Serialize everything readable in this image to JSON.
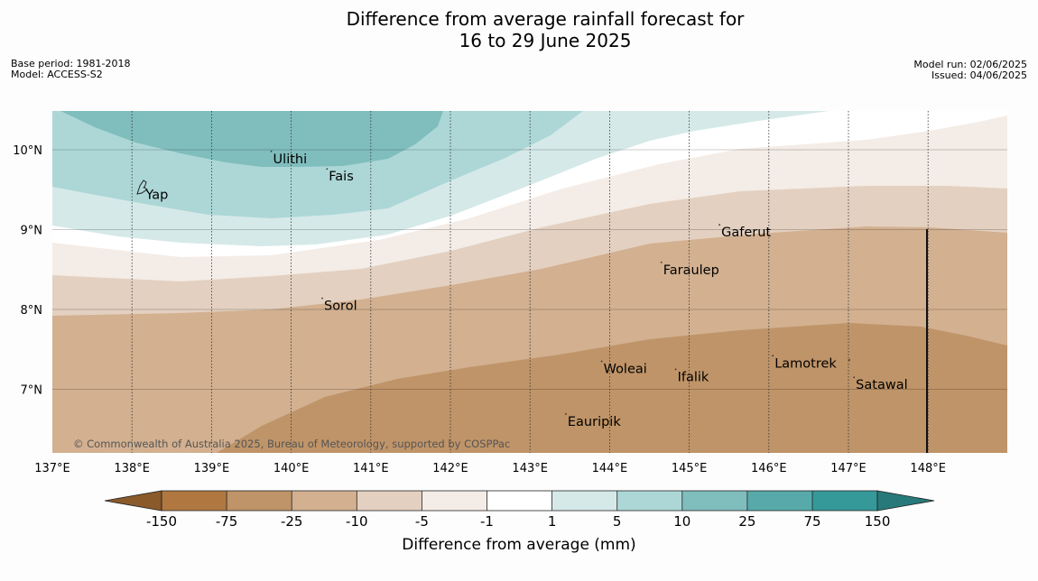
{
  "title": {
    "line1": "Difference from average rainfall forecast for",
    "line2": "16 to 29 June 2025"
  },
  "meta_left": {
    "base_period": "Base period: 1981-2018",
    "model": "Model: ACCESS-S2"
  },
  "meta_right": {
    "model_run": "Model run: 02/06/2025",
    "issued": "Issued: 04/06/2025"
  },
  "map": {
    "lon_ticks": [
      "137°E",
      "138°E",
      "139°E",
      "140°E",
      "141°E",
      "142°E",
      "143°E",
      "144°E",
      "145°E",
      "146°E",
      "147°E",
      "148°E"
    ],
    "lat_ticks": [
      "10°N",
      "9°N",
      "8°N",
      "7°N"
    ],
    "lon_range": [
      137,
      149
    ],
    "lat_range": [
      6.2,
      10.5
    ],
    "copyright": "© Commonwealth of Australia 2025, Bureau of Meteorology, supported by COSPPac",
    "places": [
      {
        "name": "Yap",
        "lon": 138.15,
        "lat": 9.53
      },
      {
        "name": "Ulithi",
        "lon": 139.75,
        "lat": 9.98
      },
      {
        "name": "Fais",
        "lon": 140.45,
        "lat": 9.76
      },
      {
        "name": "Gaferut",
        "lon": 145.38,
        "lat": 9.06
      },
      {
        "name": "Faraulep",
        "lon": 144.65,
        "lat": 8.59
      },
      {
        "name": "Sorol",
        "lon": 140.39,
        "lat": 8.14
      },
      {
        "name": "Lamotrek",
        "lon": 146.05,
        "lat": 7.42
      },
      {
        "name": "Woleai",
        "lon": 143.9,
        "lat": 7.35
      },
      {
        "name": "Ifalik",
        "lon": 144.83,
        "lat": 7.25
      },
      {
        "name": "Satawal",
        "lon": 147.07,
        "lat": 7.15
      },
      {
        "name": "Eauripik",
        "lon": 143.45,
        "lat": 6.69
      }
    ]
  },
  "colorbar": {
    "title": "Difference from average (mm)",
    "tick_labels": [
      "-150",
      "-75",
      "-25",
      "-10",
      "-5",
      "-1",
      "1",
      "5",
      "10",
      "25",
      "75",
      "150"
    ],
    "colors": [
      "#8b5a2b",
      "#b07840",
      "#bf9468",
      "#d2b090",
      "#e3d0c0",
      "#f4ece6",
      "#ffffff",
      "#d6e9e9",
      "#add7d7",
      "#80bdbd",
      "#58aaaa",
      "#35999a",
      "#287a7a"
    ]
  }
}
